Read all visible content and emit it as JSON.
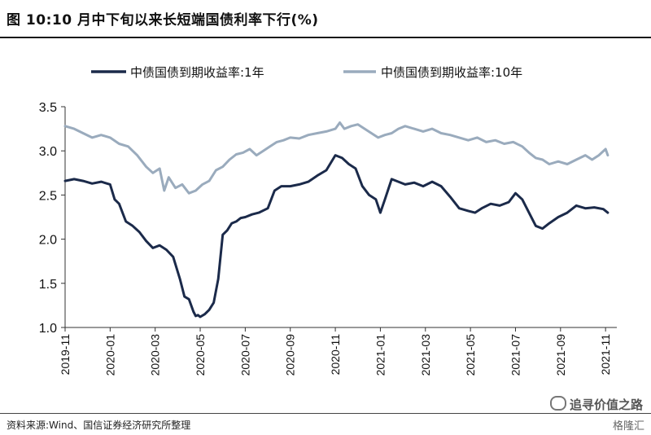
{
  "header": {
    "title": "图 10:10 月中下旬以来长短端国债利率下行(%)"
  },
  "footer": {
    "source": "资料来源:Wind、国信证券经济研究所整理",
    "watermark": "追寻价值之路",
    "watermark_sub": "格隆汇"
  },
  "colors": {
    "series_1y": "#1b2a4a",
    "series_10y": "#9aabbd",
    "axis": "#333333"
  },
  "chart_data": {
    "type": "line",
    "title": "10 月中下旬以来长短端国债利率下行(%)",
    "xlabel": "",
    "ylabel": "%",
    "ylim": [
      1.0,
      3.5
    ],
    "yticks": [
      "3.5",
      "3.0",
      "2.5",
      "2.0",
      "1.5",
      "1.0"
    ],
    "ytick_values": [
      3.5,
      3.0,
      2.5,
      2.0,
      1.5,
      1.0
    ],
    "xlim": [
      0,
      24.5
    ],
    "xticks": [
      "2019-11",
      "2020-01",
      "2020-03",
      "2020-05",
      "2020-07",
      "2020-09",
      "2020-11",
      "2021-01",
      "2021-03",
      "2021-05",
      "2021-07",
      "2021-09",
      "2021-11"
    ],
    "xtick_values": [
      0,
      2,
      4,
      6,
      8,
      10,
      12,
      14,
      16,
      18,
      20,
      22,
      24
    ],
    "legend_position": "top",
    "series": [
      {
        "name": "中债国债到期收益率:1年",
        "x": [
          0,
          0.4,
          0.8,
          1.2,
          1.6,
          2.0,
          2.2,
          2.4,
          2.7,
          3.0,
          3.3,
          3.6,
          3.9,
          4.2,
          4.5,
          4.8,
          5.1,
          5.3,
          5.5,
          5.7,
          5.8,
          5.9,
          6.0,
          6.2,
          6.4,
          6.6,
          6.8,
          7.0,
          7.2,
          7.4,
          7.6,
          7.8,
          8.0,
          8.3,
          8.6,
          9.0,
          9.3,
          9.6,
          10.0,
          10.4,
          10.8,
          11.2,
          11.6,
          12.0,
          12.3,
          12.6,
          12.9,
          13.2,
          13.5,
          13.8,
          14.0,
          14.2,
          14.5,
          14.8,
          15.1,
          15.5,
          15.9,
          16.3,
          16.7,
          17.1,
          17.5,
          17.9,
          18.2,
          18.5,
          18.9,
          19.3,
          19.7,
          20.0,
          20.3,
          20.6,
          20.9,
          21.2,
          21.5,
          21.9,
          22.3,
          22.7,
          23.1,
          23.5,
          23.9,
          24.1
        ],
        "values": [
          2.66,
          2.68,
          2.66,
          2.63,
          2.65,
          2.62,
          2.45,
          2.4,
          2.2,
          2.15,
          2.08,
          1.98,
          1.9,
          1.93,
          1.88,
          1.8,
          1.55,
          1.35,
          1.32,
          1.18,
          1.13,
          1.14,
          1.12,
          1.15,
          1.2,
          1.28,
          1.55,
          2.05,
          2.1,
          2.18,
          2.2,
          2.24,
          2.25,
          2.28,
          2.3,
          2.35,
          2.55,
          2.6,
          2.6,
          2.62,
          2.65,
          2.72,
          2.78,
          2.95,
          2.92,
          2.85,
          2.8,
          2.6,
          2.5,
          2.45,
          2.3,
          2.45,
          2.68,
          2.65,
          2.62,
          2.64,
          2.6,
          2.65,
          2.6,
          2.48,
          2.35,
          2.32,
          2.3,
          2.35,
          2.4,
          2.38,
          2.42,
          2.52,
          2.45,
          2.3,
          2.15,
          2.12,
          2.18,
          2.25,
          2.3,
          2.38,
          2.35,
          2.36,
          2.34,
          2.3
        ]
      },
      {
        "name": "中债国债到期收益率:10年",
        "x": [
          0,
          0.4,
          0.8,
          1.2,
          1.6,
          2.0,
          2.4,
          2.8,
          3.2,
          3.6,
          3.9,
          4.2,
          4.4,
          4.6,
          4.9,
          5.2,
          5.5,
          5.8,
          6.1,
          6.4,
          6.7,
          7.0,
          7.3,
          7.6,
          7.9,
          8.2,
          8.5,
          8.8,
          9.1,
          9.4,
          9.7,
          10.0,
          10.4,
          10.8,
          11.2,
          11.6,
          12.0,
          12.2,
          12.4,
          12.7,
          13.0,
          13.3,
          13.6,
          13.9,
          14.2,
          14.5,
          14.8,
          15.1,
          15.5,
          15.9,
          16.3,
          16.7,
          17.1,
          17.5,
          17.9,
          18.3,
          18.7,
          19.1,
          19.5,
          19.9,
          20.3,
          20.6,
          20.9,
          21.2,
          21.5,
          21.9,
          22.3,
          22.7,
          23.1,
          23.4,
          23.7,
          24.0,
          24.1
        ],
        "values": [
          3.28,
          3.25,
          3.2,
          3.15,
          3.18,
          3.15,
          3.08,
          3.05,
          2.95,
          2.82,
          2.75,
          2.8,
          2.55,
          2.7,
          2.58,
          2.62,
          2.52,
          2.55,
          2.62,
          2.66,
          2.78,
          2.82,
          2.9,
          2.96,
          2.98,
          3.02,
          2.95,
          3.0,
          3.05,
          3.1,
          3.12,
          3.15,
          3.14,
          3.18,
          3.2,
          3.22,
          3.25,
          3.32,
          3.25,
          3.28,
          3.3,
          3.25,
          3.2,
          3.15,
          3.18,
          3.2,
          3.25,
          3.28,
          3.25,
          3.22,
          3.25,
          3.2,
          3.18,
          3.15,
          3.12,
          3.15,
          3.1,
          3.12,
          3.08,
          3.1,
          3.05,
          2.98,
          2.92,
          2.9,
          2.85,
          2.88,
          2.85,
          2.9,
          2.95,
          2.9,
          2.95,
          3.02,
          2.95
        ]
      }
    ]
  }
}
